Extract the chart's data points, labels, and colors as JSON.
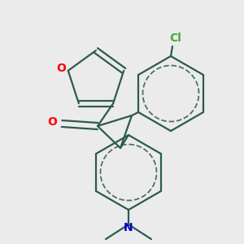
{
  "bg_color": "#ebebeb",
  "bond_color": "#2d5a4e",
  "O_color": "#ff0000",
  "N_color": "#0000cc",
  "Cl_color": "#44aa44",
  "line_width": 1.6,
  "figsize": [
    3.0,
    3.0
  ],
  "dpi": 100,
  "xlim": [
    0,
    300
  ],
  "ylim": [
    0,
    300
  ]
}
